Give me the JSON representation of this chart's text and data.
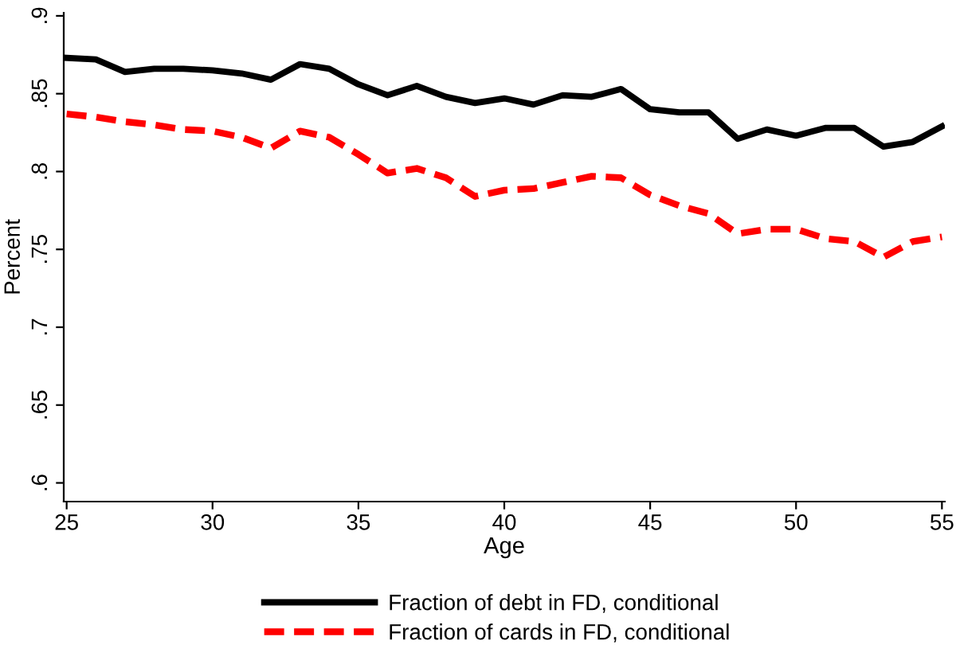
{
  "chart_data": {
    "type": "line",
    "xlabel": "Age",
    "ylabel": "Percent",
    "x": [
      25,
      26,
      27,
      28,
      29,
      30,
      31,
      32,
      33,
      34,
      35,
      36,
      37,
      38,
      39,
      40,
      41,
      42,
      43,
      44,
      45,
      46,
      47,
      48,
      49,
      50,
      51,
      52,
      53,
      54,
      55
    ],
    "series": [
      {
        "name": "Fraction of debt in FD, conditional",
        "color": "#000000",
        "line_style": "solid",
        "values": [
          0.873,
          0.872,
          0.864,
          0.866,
          0.866,
          0.865,
          0.863,
          0.859,
          0.869,
          0.866,
          0.856,
          0.849,
          0.855,
          0.848,
          0.844,
          0.847,
          0.843,
          0.849,
          0.848,
          0.853,
          0.84,
          0.838,
          0.838,
          0.821,
          0.827,
          0.823,
          0.828,
          0.828,
          0.816,
          0.819,
          0.829
        ]
      },
      {
        "name": "Fraction of cards in FD, conditional",
        "color": "#ff0000",
        "line_style": "dashed",
        "values": [
          0.837,
          0.835,
          0.832,
          0.83,
          0.827,
          0.826,
          0.822,
          0.815,
          0.826,
          0.822,
          0.811,
          0.799,
          0.802,
          0.796,
          0.784,
          0.788,
          0.789,
          0.793,
          0.797,
          0.796,
          0.785,
          0.778,
          0.773,
          0.76,
          0.763,
          0.763,
          0.757,
          0.755,
          0.745,
          0.755,
          0.758
        ]
      }
    ],
    "xlim": [
      24.9,
      55.1
    ],
    "ylim": [
      0.588,
      0.902
    ],
    "xticks": [
      25,
      30,
      35,
      40,
      45,
      50,
      55
    ],
    "yticks": [
      {
        "value": 0.6,
        "label": ".6"
      },
      {
        "value": 0.65,
        "label": ".65"
      },
      {
        "value": 0.7,
        "label": ".7"
      },
      {
        "value": 0.75,
        "label": ".75"
      },
      {
        "value": 0.8,
        "label": ".8"
      },
      {
        "value": 0.85,
        "label": ".85"
      },
      {
        "value": 0.9,
        "label": ".9"
      }
    ],
    "grid": false,
    "legend": "bottom"
  }
}
